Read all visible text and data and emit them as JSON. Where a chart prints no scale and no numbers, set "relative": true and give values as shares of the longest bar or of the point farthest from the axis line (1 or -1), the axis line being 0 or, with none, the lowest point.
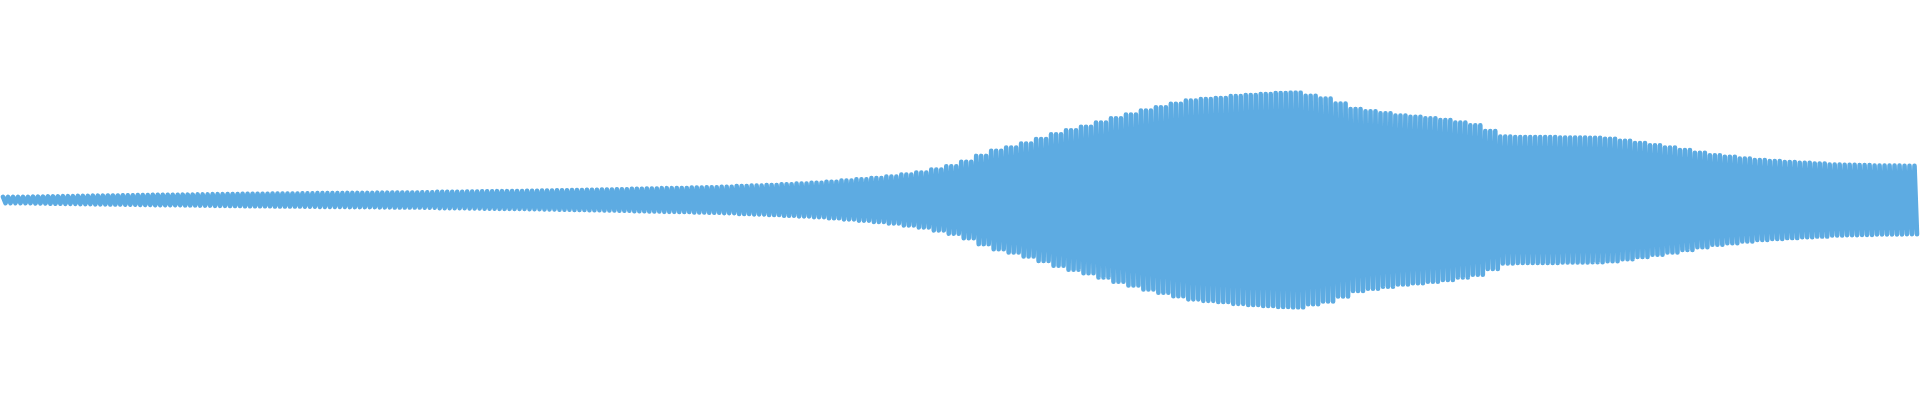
{
  "chart_data": {
    "type": "line",
    "relative": true,
    "color": "#5dabe2",
    "categories": [
      null,
      null,
      null,
      null,
      null,
      null,
      null,
      null,
      null,
      null,
      null,
      null,
      null,
      null,
      null,
      null,
      null,
      null,
      null,
      null,
      null,
      null,
      null,
      null,
      null,
      null,
      null,
      null,
      null,
      null,
      null,
      null,
      null,
      null,
      null,
      null,
      null,
      null,
      null,
      null,
      null,
      null,
      null,
      null,
      null,
      null,
      null,
      null,
      null,
      null,
      null,
      null,
      null,
      null,
      null,
      null,
      null,
      null,
      null,
      null,
      null,
      null,
      null,
      null,
      null,
      null,
      null,
      null,
      null,
      null,
      null,
      null,
      null,
      null,
      null,
      null,
      null,
      null,
      null,
      null,
      null,
      null,
      null,
      null,
      null,
      null,
      null,
      null,
      null,
      null,
      null,
      null,
      null,
      null,
      null,
      null,
      null,
      null,
      null,
      null,
      null,
      null,
      null,
      null,
      null,
      null,
      null,
      null,
      null,
      null,
      null,
      null,
      null,
      null,
      null,
      null,
      null,
      null,
      null,
      null,
      null,
      null,
      null,
      null,
      null,
      null,
      null,
      null,
      null,
      null,
      null,
      null,
      null,
      null,
      null,
      null,
      null,
      null,
      null,
      null,
      null,
      null,
      null,
      null,
      null,
      null,
      null,
      null,
      null,
      null,
      null,
      null,
      null,
      null,
      null,
      null,
      null,
      null,
      null,
      null,
      null,
      null,
      null,
      null,
      null,
      null,
      null,
      null,
      null,
      null,
      null,
      null,
      null,
      null,
      null,
      null,
      null,
      null,
      null,
      null,
      null,
      null,
      null,
      null,
      null,
      null,
      null,
      null,
      null,
      null,
      null,
      null,
      null,
      null,
      null,
      null,
      null,
      null,
      null,
      null,
      null,
      null,
      null,
      null,
      null,
      null,
      null,
      null,
      null,
      null,
      null,
      null,
      null,
      null,
      null,
      null,
      null,
      null,
      null,
      null,
      null,
      null,
      null,
      null,
      null,
      null,
      null,
      null,
      null,
      null,
      null,
      null,
      null,
      null,
      null,
      null,
      null,
      null,
      null,
      null,
      null,
      null,
      null,
      null,
      null,
      null,
      null,
      null,
      null,
      null,
      null,
      null,
      null,
      null,
      null,
      null,
      null,
      null,
      null,
      null,
      null,
      null,
      null,
      null,
      null,
      null,
      null,
      null,
      null,
      null,
      null,
      null,
      null,
      null,
      null,
      null,
      null,
      null,
      null,
      null,
      null,
      null,
      null,
      null,
      null,
      null,
      null,
      null,
      null,
      null,
      null,
      null,
      null,
      null,
      null,
      null,
      null,
      null,
      null,
      null,
      null,
      null,
      null,
      null,
      null,
      null,
      null,
      null,
      null,
      null,
      null,
      null,
      null,
      null,
      null,
      null,
      null,
      null,
      null,
      null,
      null,
      null,
      null,
      null,
      null,
      null,
      null,
      null,
      null,
      null,
      null,
      null,
      null,
      null,
      null,
      null,
      null,
      null,
      null,
      null,
      null,
      null,
      null,
      null,
      null,
      null,
      null,
      null,
      null,
      null,
      null,
      null,
      null,
      null,
      null,
      null,
      null,
      null,
      null,
      null,
      null,
      null,
      null,
      null,
      null,
      null,
      null,
      null,
      null,
      null,
      null,
      null,
      null,
      null,
      null,
      null,
      null,
      null,
      null,
      null,
      null,
      null,
      null,
      null,
      null,
      null,
      null,
      null,
      null,
      null,
      null,
      null,
      null,
      null,
      null,
      null,
      null,
      null,
      null,
      null,
      null,
      null,
      null,
      null,
      null,
      null,
      null,
      null,
      null,
      null,
      null,
      null,
      null,
      null,
      null,
      null,
      null,
      null,
      null,
      null,
      null,
      null,
      null,
      null,
      null,
      null,
      null,
      null,
      null,
      null,
      null,
      null,
      null,
      null,
      null,
      null,
      null,
      null,
      null,
      null,
      null,
      null,
      null,
      null,
      null,
      null,
      null,
      null,
      null,
      null,
      null,
      null,
      null,
      null,
      null,
      null,
      null,
      null,
      null,
      null,
      null,
      null,
      null,
      null,
      null,
      null,
      null,
      null,
      null,
      null,
      null,
      null,
      null,
      null,
      null,
      null,
      null,
      null,
      null,
      null,
      null,
      null,
      null,
      null,
      null,
      null,
      null,
      null,
      null,
      null,
      null,
      null,
      null,
      null,
      null,
      null,
      null,
      null,
      null,
      null,
      null,
      null,
      null,
      null,
      null,
      null,
      null,
      null,
      null,
      null,
      null,
      null,
      null,
      null,
      null,
      null,
      null,
      null,
      null,
      null,
      null,
      null,
      null,
      null,
      null,
      null,
      null,
      null,
      null,
      null,
      null,
      null,
      null,
      null,
      null,
      null,
      null,
      null,
      null,
      null,
      null,
      null,
      null,
      null,
      null,
      null,
      null,
      null,
      null,
      null,
      null,
      null,
      null,
      null,
      null,
      null,
      null,
      null,
      null,
      null,
      null,
      null,
      null,
      null,
      null,
      null,
      null,
      null,
      null,
      null,
      null,
      null,
      null,
      null,
      null,
      null,
      null,
      null,
      null,
      null,
      null,
      null,
      null,
      null,
      null,
      null,
      null,
      null,
      null,
      null,
      null,
      null,
      null,
      null,
      null,
      null,
      null,
      null,
      null,
      null,
      null,
      null,
      null,
      null,
      null,
      null,
      null,
      null,
      null,
      null,
      null,
      null,
      null,
      null,
      null,
      null,
      null,
      null,
      null,
      null,
      null,
      null,
      null,
      null,
      null,
      null,
      null,
      null,
      null,
      null,
      null,
      null,
      null,
      null,
      null,
      null,
      null,
      null,
      null,
      null,
      null,
      null,
      null,
      null,
      null,
      null,
      null,
      null,
      null,
      null,
      null,
      null,
      null,
      null,
      null,
      null,
      null,
      null,
      null,
      null,
      null,
      null,
      null,
      null,
      null,
      null,
      null,
      null,
      null,
      null,
      null,
      null,
      null,
      null,
      null,
      null,
      null,
      null,
      null,
      null,
      null,
      null,
      null,
      null,
      null,
      null,
      null,
      null,
      null,
      null,
      null,
      null,
      null,
      null,
      null,
      null,
      null,
      null,
      null,
      null,
      null,
      null,
      null,
      null,
      null,
      null,
      null,
      null,
      null,
      null,
      null,
      null,
      null,
      null,
      null,
      null,
      null,
      null,
      null,
      null,
      null,
      null,
      null,
      null,
      null,
      null,
      null,
      null,
      null,
      null,
      null,
      null,
      null,
      null,
      null,
      null,
      null,
      null,
      null,
      null,
      null,
      null,
      null,
      null,
      null,
      null,
      null,
      null,
      null,
      null,
      null,
      null,
      null,
      null,
      null,
      null,
      null,
      null,
      null,
      null,
      null,
      null,
      null,
      null,
      null,
      null,
      null,
      null
    ],
    "values": [
      0.514,
      0.486,
      0.514,
      0.486,
      0.514,
      0.486,
      0.515,
      0.485,
      0.515,
      0.485,
      0.515,
      0.485,
      0.516,
      0.484,
      0.516,
      0.484,
      0.516,
      0.484,
      0.517,
      0.483,
      0.517,
      0.483,
      0.517,
      0.483,
      0.518,
      0.482,
      0.518,
      0.482,
      0.518,
      0.482,
      0.519,
      0.481,
      0.519,
      0.481,
      0.519,
      0.481,
      0.52,
      0.48,
      0.52,
      0.48,
      0.52,
      0.48,
      0.521,
      0.479,
      0.521,
      0.479,
      0.521,
      0.479,
      0.522,
      0.478,
      0.522,
      0.478,
      0.522,
      0.478,
      0.523,
      0.477,
      0.523,
      0.477,
      0.523,
      0.477,
      0.524,
      0.476,
      0.524,
      0.476,
      0.524,
      0.476,
      0.524,
      0.476,
      0.524,
      0.476,
      0.524,
      0.476,
      0.525,
      0.475,
      0.525,
      0.475,
      0.525,
      0.475,
      0.526,
      0.474,
      0.526,
      0.474,
      0.526,
      0.474,
      0.527,
      0.473,
      0.527,
      0.473,
      0.527,
      0.473,
      0.528,
      0.472,
      0.528,
      0.472,
      0.528,
      0.472,
      0.529,
      0.471,
      0.529,
      0.471,
      0.529,
      0.471,
      0.529,
      0.471,
      0.529,
      0.471,
      0.529,
      0.471,
      0.53,
      0.47,
      0.53,
      0.47,
      0.53,
      0.47,
      0.53,
      0.47,
      0.53,
      0.47,
      0.53,
      0.47,
      0.531,
      0.469,
      0.531,
      0.469,
      0.531,
      0.469,
      0.532,
      0.468,
      0.532,
      0.468,
      0.532,
      0.468,
      0.532,
      0.468,
      0.532,
      0.468,
      0.532,
      0.468,
      0.533,
      0.467,
      0.533,
      0.467,
      0.533,
      0.467,
      0.533,
      0.467,
      0.533,
      0.467,
      0.533,
      0.467,
      0.534,
      0.466,
      0.534,
      0.466,
      0.534,
      0.466,
      0.535,
      0.465,
      0.535,
      0.465,
      0.535,
      0.465,
      0.535,
      0.465,
      0.535,
      0.465,
      0.535,
      0.465,
      0.536,
      0.464,
      0.536,
      0.464,
      0.536,
      0.464,
      0.538,
      0.462,
      0.538,
      0.462,
      0.538,
      0.462,
      0.538,
      0.462,
      0.538,
      0.462,
      0.538,
      0.462,
      0.539,
      0.461,
      0.539,
      0.461,
      0.539,
      0.461,
      0.54,
      0.46,
      0.54,
      0.46,
      0.54,
      0.46,
      0.541,
      0.459,
      0.541,
      0.459,
      0.541,
      0.459,
      0.542,
      0.458,
      0.542,
      0.458,
      0.542,
      0.458,
      0.543,
      0.457,
      0.543,
      0.457,
      0.543,
      0.457,
      0.544,
      0.456,
      0.544,
      0.456,
      0.544,
      0.456,
      0.545,
      0.455,
      0.545,
      0.455,
      0.545,
      0.455,
      0.546,
      0.454,
      0.546,
      0.454,
      0.546,
      0.454,
      0.547,
      0.453,
      0.547,
      0.453,
      0.547,
      0.453,
      0.549,
      0.451,
      0.549,
      0.451,
      0.549,
      0.451,
      0.55,
      0.45,
      0.55,
      0.45,
      0.55,
      0.45,
      0.552,
      0.448,
      0.552,
      0.448,
      0.552,
      0.448,
      0.553,
      0.447,
      0.553,
      0.447,
      0.553,
      0.447,
      0.555,
      0.445,
      0.555,
      0.445,
      0.555,
      0.445,
      0.556,
      0.444,
      0.556,
      0.444,
      0.556,
      0.444,
      0.558,
      0.442,
      0.558,
      0.442,
      0.558,
      0.442,
      0.559,
      0.441,
      0.559,
      0.441,
      0.559,
      0.441,
      0.561,
      0.439,
      0.561,
      0.439,
      0.561,
      0.439,
      0.565,
      0.435,
      0.565,
      0.435,
      0.565,
      0.435,
      0.567,
      0.433,
      0.567,
      0.433,
      0.567,
      0.433,
      0.57,
      0.43,
      0.57,
      0.43,
      0.57,
      0.43,
      0.573,
      0.427,
      0.573,
      0.427,
      0.573,
      0.427,
      0.576,
      0.424,
      0.576,
      0.424,
      0.576,
      0.424,
      0.58,
      0.42,
      0.58,
      0.42,
      0.58,
      0.42,
      0.585,
      0.415,
      0.585,
      0.415,
      0.585,
      0.415,
      0.59,
      0.41,
      0.59,
      0.41,
      0.59,
      0.41,
      0.596,
      0.404,
      0.596,
      0.404,
      0.596,
      0.404,
      0.602,
      0.398,
      0.602,
      0.398,
      0.602,
      0.398,
      0.609,
      0.391,
      0.609,
      0.391,
      0.609,
      0.391,
      0.618,
      0.382,
      0.618,
      0.382,
      0.618,
      0.382,
      0.628,
      0.372,
      0.628,
      0.372,
      0.628,
      0.372,
      0.642,
      0.358,
      0.642,
      0.358,
      0.642,
      0.358,
      0.657,
      0.343,
      0.657,
      0.343,
      0.657,
      0.343,
      0.678,
      0.322,
      0.678,
      0.322,
      0.678,
      0.322,
      0.705,
      0.295,
      0.705,
      0.295,
      0.705,
      0.295,
      0.729,
      0.271,
      0.729,
      0.271,
      0.729,
      0.271,
      0.744,
      0.256,
      0.744,
      0.256,
      0.744,
      0.256,
      0.763,
      0.237,
      0.763,
      0.237,
      0.763,
      0.237,
      0.783,
      0.217,
      0.783,
      0.217,
      0.783,
      0.217,
      0.806,
      0.194,
      0.806,
      0.194,
      0.806,
      0.194,
      0.824,
      0.176,
      0.824,
      0.176,
      0.824,
      0.176,
      0.841,
      0.159,
      0.841,
      0.159,
      0.841,
      0.159,
      0.86,
      0.14,
      0.86,
      0.14,
      0.86,
      0.14,
      0.88,
      0.12,
      0.88,
      0.12,
      0.88,
      0.12,
      0.898,
      0.102,
      0.898,
      0.102,
      0.898,
      0.102,
      0.916,
      0.084,
      0.916,
      0.084,
      0.916,
      0.084,
      0.931,
      0.069,
      0.931,
      0.069,
      0.931,
      0.069,
      0.947,
      0.053,
      0.947,
      0.053,
      0.947,
      0.053,
      0.962,
      0.038,
      0.962,
      0.038,
      0.962,
      0.038,
      0.969,
      0.031,
      0.969,
      0.031,
      0.969,
      0.031,
      0.974,
      0.026,
      0.974,
      0.026,
      0.974,
      0.026,
      0.983,
      0.017,
      0.983,
      0.017,
      0.983,
      0.017,
      0.988,
      0.012,
      0.988,
      0.012,
      0.988,
      0.012,
      0.993,
      0.007,
      0.993,
      0.007,
      0.993,
      0.007,
      0.998,
      0.002,
      0.998,
      0.002,
      0.998,
      0.002,
      1,
      0,
      1,
      0,
      1,
      0,
      0.985,
      0.015,
      0.985,
      0.015,
      0.985,
      0.015,
      0.972,
      0.028,
      0.972,
      0.028,
      0.972,
      0.028,
      0.949,
      0.051,
      0.949,
      0.051,
      0.949,
      0.051,
      0.923,
      0.077,
      0.923,
      0.077,
      0.923,
      0.077,
      0.913,
      0.087,
      0.913,
      0.087,
      0.913,
      0.087,
      0.903,
      0.097,
      0.903,
      0.097,
      0.903,
      0.097,
      0.893,
      0.107,
      0.893,
      0.107,
      0.893,
      0.107,
      0.887,
      0.113,
      0.887,
      0.113,
      0.887,
      0.113,
      0.88,
      0.12,
      0.88,
      0.12,
      0.88,
      0.12,
      0.872,
      0.128,
      0.872,
      0.128,
      0.872,
      0.128,
      0.86,
      0.14,
      0.86,
      0.14,
      0.86,
      0.14,
      0.847,
      0.153,
      0.847,
      0.153,
      0.847,
      0.153,
      0.821,
      0.179,
      0.821,
      0.179,
      0.821,
      0.179,
      0.795,
      0.205,
      0.795,
      0.205,
      0.795,
      0.205,
      0.793,
      0.207,
      0.793,
      0.207,
      0.793,
      0.207,
      0.793,
      0.207,
      0.793,
      0.207,
      0.793,
      0.207,
      0.793,
      0.207,
      0.793,
      0.207,
      0.793,
      0.207,
      0.79,
      0.21,
      0.79,
      0.21,
      0.79,
      0.21,
      0.79,
      0.21,
      0.79,
      0.21,
      0.79,
      0.21,
      0.789,
      0.211,
      0.789,
      0.211,
      0.789,
      0.211,
      0.785,
      0.215,
      0.785,
      0.215,
      0.785,
      0.215,
      0.775,
      0.225,
      0.775,
      0.225,
      0.775,
      0.225,
      0.765,
      0.235,
      0.765,
      0.235,
      0.765,
      0.235,
      0.754,
      0.246,
      0.754,
      0.246,
      0.754,
      0.246,
      0.744,
      0.256,
      0.744,
      0.256,
      0.744,
      0.256,
      0.732,
      0.268,
      0.732,
      0.268,
      0.732,
      0.268,
      0.719,
      0.281,
      0.719,
      0.281,
      0.719,
      0.281,
      0.708,
      0.292,
      0.708,
      0.292,
      0.708,
      0.292,
      0.701,
      0.299,
      0.701,
      0.299,
      0.701,
      0.299,
      0.693,
      0.307,
      0.693,
      0.307,
      0.693,
      0.307,
      0.686,
      0.314,
      0.686,
      0.314,
      0.686,
      0.314,
      0.681,
      0.319,
      0.681,
      0.319,
      0.681,
      0.319,
      0.677,
      0.323,
      0.677,
      0.323,
      0.677,
      0.323,
      0.673,
      0.327,
      0.673,
      0.327,
      0.673,
      0.327,
      0.67,
      0.33,
      0.67,
      0.33,
      0.67,
      0.33,
      0.665,
      0.335,
      0.665,
      0.335,
      0.665,
      0.335,
      0.664,
      0.336,
      0.664,
      0.336,
      0.664,
      0.336,
      0.662,
      0.338,
      0.662,
      0.338,
      0.662,
      0.338,
      0.66,
      0.34,
      0.66,
      0.34,
      0.66,
      0.34,
      0.66,
      0.34,
      0.66,
      0.34,
      0.66,
      0.34,
      0.659,
      0.341,
      0.659,
      0.341,
      0.659,
      0.341
    ]
  }
}
